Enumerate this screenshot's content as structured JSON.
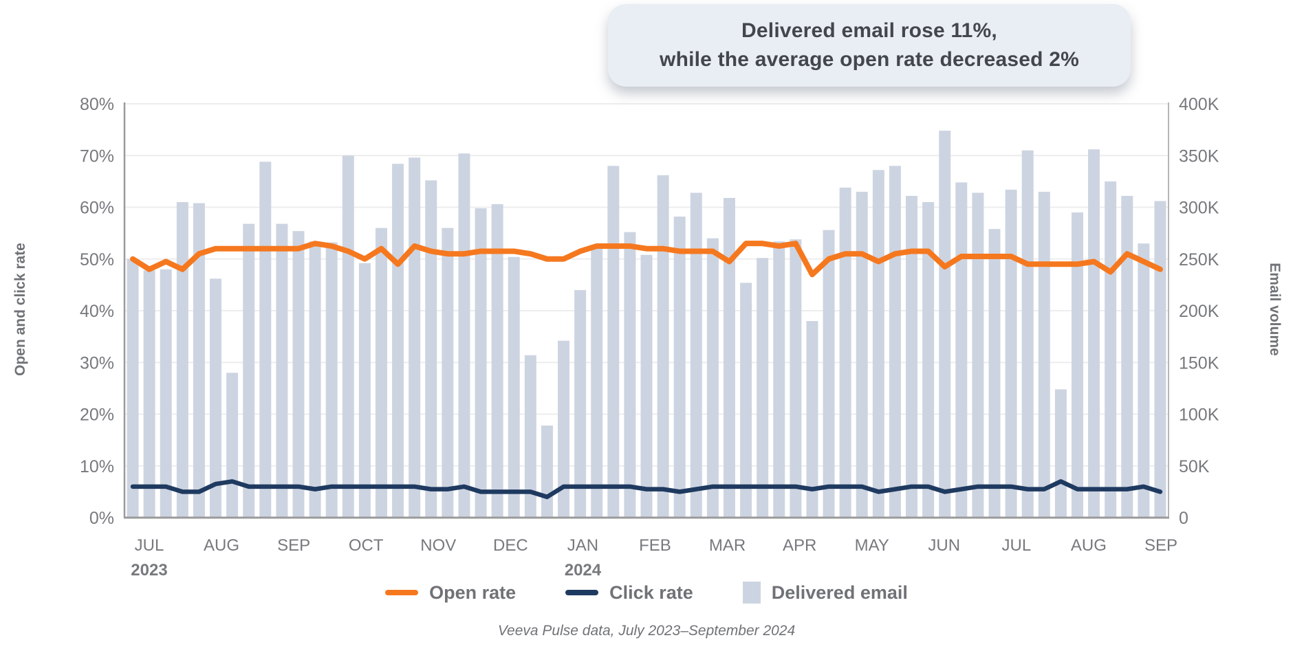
{
  "annotation": {
    "line1": "Delivered email rose 11%,",
    "line2": "while the average open rate decreased 2%"
  },
  "left_axis": {
    "title": "Open and click rate",
    "ticks": [
      "0%",
      "10%",
      "20%",
      "30%",
      "40%",
      "50%",
      "60%",
      "70%",
      "80%"
    ],
    "max": 80
  },
  "right_axis": {
    "title": "Email volume",
    "ticks": [
      "0",
      "50K",
      "100K",
      "150K",
      "200K",
      "250K",
      "300K",
      "350K",
      "400K"
    ],
    "max_thousands": 400
  },
  "x_axis": {
    "months": [
      {
        "label": "JUL",
        "year": "2023"
      },
      {
        "label": "AUG"
      },
      {
        "label": "SEP"
      },
      {
        "label": "OCT"
      },
      {
        "label": "NOV"
      },
      {
        "label": "DEC"
      },
      {
        "label": "JAN",
        "year": "2024"
      },
      {
        "label": "FEB"
      },
      {
        "label": "MAR"
      },
      {
        "label": "APR"
      },
      {
        "label": "MAY"
      },
      {
        "label": "JUN"
      },
      {
        "label": "JUL"
      },
      {
        "label": "AUG"
      },
      {
        "label": "SEP"
      }
    ]
  },
  "legend": [
    {
      "label": "Open rate",
      "type": "line",
      "color": "#f5781f"
    },
    {
      "label": "Click rate",
      "type": "line",
      "color": "#1f3a60"
    },
    {
      "label": "Delivered email",
      "type": "bar",
      "color": "#cdd4e1"
    }
  ],
  "caption": "Veeva Pulse data, July 2023–September 2024",
  "colors": {
    "open_rate": "#f5781f",
    "click_rate": "#1f3a60",
    "bar": "#cdd4e1",
    "grid": "#ededed",
    "axis_line": "#9a9a9a",
    "tick_text": "#76797d",
    "annotation_bg": "#e9edf4",
    "annotation_text": "#43474c"
  },
  "chart_data": {
    "type": "combo",
    "x_description": "Weekly values, July 2023 – September 2024 (63 weeks)",
    "left_ylim": [
      0,
      80
    ],
    "right_ylim_thousands": [
      0,
      400
    ],
    "grid": true,
    "legend_position": "bottom",
    "series": [
      {
        "name": "Open rate",
        "type": "line",
        "axis": "left",
        "unit": "%",
        "color": "#f5781f",
        "values": [
          50,
          48,
          49.5,
          48,
          51,
          52,
          52,
          52,
          52,
          52,
          52,
          53,
          52.5,
          51.5,
          50,
          52,
          49,
          52.5,
          51.5,
          51,
          51,
          51.5,
          51.5,
          51.5,
          51,
          50,
          50,
          51.5,
          52.5,
          52.5,
          52.5,
          52,
          52,
          51.5,
          51.5,
          51.5,
          49.5,
          53,
          53,
          52.5,
          53,
          47,
          50,
          51,
          51,
          49.5,
          51,
          51.5,
          51.5,
          48.5,
          50.5,
          50.5,
          50.5,
          50.5,
          49,
          49,
          49,
          49,
          49.5,
          47.5,
          51,
          49.5,
          48
        ]
      },
      {
        "name": "Click rate",
        "type": "line",
        "axis": "left",
        "unit": "%",
        "color": "#1f3a60",
        "values": [
          6,
          6,
          6,
          5,
          5,
          6.5,
          7,
          6,
          6,
          6,
          6,
          5.5,
          6,
          6,
          6,
          6,
          6,
          6,
          5.5,
          5.5,
          6,
          5,
          5,
          5,
          5,
          4,
          6,
          6,
          6,
          6,
          6,
          5.5,
          5.5,
          5,
          5.5,
          6,
          6,
          6,
          6,
          6,
          6,
          5.5,
          6,
          6,
          6,
          5,
          5.5,
          6,
          6,
          5,
          5.5,
          6,
          6,
          6,
          5.5,
          5.5,
          7,
          5.5,
          5.5,
          5.5,
          5.5,
          6,
          5
        ]
      },
      {
        "name": "Delivered email",
        "type": "bar",
        "axis": "right",
        "unit": "emails (thousands)",
        "color": "#cdd4e1",
        "values": [
          250,
          239,
          240,
          305,
          304,
          231,
          140,
          284,
          344,
          284,
          277,
          267,
          266,
          350,
          246,
          280,
          342,
          348,
          326,
          280,
          352,
          299,
          303,
          252,
          157,
          89,
          171,
          220,
          262,
          340,
          276,
          254,
          331,
          291,
          314,
          270,
          309,
          227,
          251,
          267,
          269,
          190,
          278,
          319,
          315,
          336,
          340,
          311,
          305,
          374,
          324,
          314,
          279,
          317,
          355,
          315,
          124,
          295,
          356,
          325,
          311,
          265,
          306
        ]
      }
    ]
  }
}
